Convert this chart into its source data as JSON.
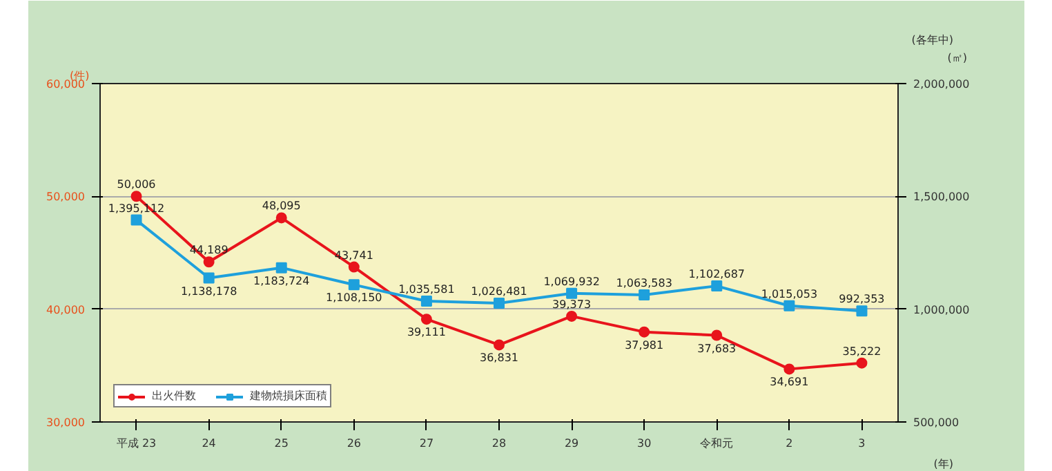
{
  "chart_data": {
    "type": "line",
    "categories": [
      "平成 23",
      "24",
      "25",
      "26",
      "27",
      "28",
      "29",
      "30",
      "令和元",
      "2",
      "3"
    ],
    "xlabel": "(年)",
    "ylabel": "(件)",
    "y2label": "(㎡)",
    "annotations": [
      "(各年中)"
    ],
    "ylim": [
      30000,
      60000
    ],
    "yticks": [
      {
        "value": 30000,
        "label": "30,000"
      },
      {
        "value": 40000,
        "label": "40,000"
      },
      {
        "value": 50000,
        "label": "50,000"
      },
      {
        "value": 60000,
        "label": "60,000"
      }
    ],
    "y2lim": [
      500000,
      2000000
    ],
    "y2ticks": [
      {
        "value": 500000,
        "label": "500,000"
      },
      {
        "value": 1000000,
        "label": "1,000,000"
      },
      {
        "value": 1500000,
        "label": "1,500,000"
      },
      {
        "value": 2000000,
        "label": "2,000,000"
      }
    ],
    "series": [
      {
        "name": "出火件数",
        "color": "#e8141c",
        "marker": "circle",
        "values": [
          50006,
          44189,
          48095,
          43741,
          39111,
          36831,
          39373,
          37981,
          37683,
          34691,
          35222
        ],
        "value_labels": [
          "50,006",
          "44,189",
          "48,095",
          "43,741",
          "39,111",
          "36,831",
          "39,373",
          "37,981",
          "37,683",
          "34,691",
          "35,222"
        ]
      },
      {
        "name": "建物焼損床面積",
        "color": "#1ea0dc",
        "marker": "square",
        "axis": "y2",
        "values": [
          1395112,
          1138178,
          1183724,
          1108150,
          1035581,
          1026481,
          1069932,
          1063583,
          1102687,
          1015053,
          992353
        ],
        "value_labels": [
          "1,395,112",
          "1,138,178",
          "1,183,724",
          "1,108,150",
          "1,035,581",
          "1,026,481",
          "1,069,932",
          "1,063,583",
          "1,102,687",
          "1,015,053",
          "992,353"
        ]
      }
    ],
    "grid": "y",
    "legend": "bottom left"
  }
}
